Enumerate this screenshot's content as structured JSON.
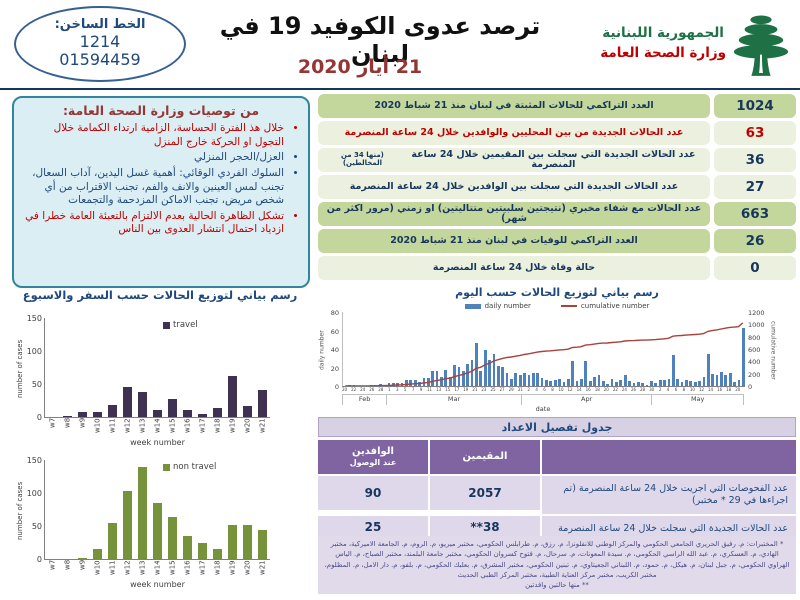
{
  "header": {
    "hotline_label": "الخط الساخن:",
    "hotline_number_short": "1214",
    "hotline_number_long": "01594459",
    "title": "ترصد عدوى الكوفيد 19 في لبنان",
    "date": "21 أيار 2020",
    "ministry_line1": "الجمهورية اللبنانية",
    "ministry_line2": "وزارة الصحة العامة"
  },
  "colors": {
    "green_dark_row": "#C3D69B",
    "green_light_row": "#EBF1DE",
    "navy": "#17365D",
    "red": "#C00000",
    "panel_teal": "#31859C",
    "purple_header": "#8064A2",
    "daily_bar_blue": "#4F81BD",
    "cumulative_line_red": "#A8423C",
    "travel_purple": "#3F3151",
    "nontravel_green": "#76933C"
  },
  "recommendations": {
    "title": "من توصيات وزارة الصحة العامة:",
    "items": [
      {
        "text": "خلال هذ الفترة الحساسة، الزامية ارتداء الكمامة خلال التجول او الحركة خارج المنزل",
        "color": "red"
      },
      {
        "text": "العزل/الحجر المنزلي",
        "color": "blue"
      },
      {
        "text": "السلوك الفردي الوقائي: أهمية غسل اليدين، آداب السعال، تجنب لمس العينين والانف والفم، تجنب الاقتراب من أي شخص مريض، تجنب الاماكن المزدحمة والتجمعات",
        "color": "blue"
      },
      {
        "text": "تشكل الظاهرة الحالية بعدم الالتزام بالتعبئة العامة خطرا في ازدياد احتمال انتشار العدوى بين الناس",
        "color": "red"
      }
    ]
  },
  "stats_rows": [
    {
      "value": "1024",
      "label": "العدد التراكمي للحالات المثبتة في لبنان منذ 21 شباط 2020",
      "shade": "dark",
      "color": "navy",
      "note": ""
    },
    {
      "value": "63",
      "label": "عدد الحالات الجديدة من بين المحليين والوافدين خلال 24 ساعة المنصرمة",
      "shade": "light",
      "color": "red",
      "note": ""
    },
    {
      "value": "36",
      "label": "عدد الحالات الجديدة التي سجلت بين المقيمين خلال 24 ساعة المنصرمة",
      "shade": "light",
      "color": "navy",
      "note": "(منها 34 من المخالطين)"
    },
    {
      "value": "27",
      "label": "عدد الحالات الجديدة التي سجلت بين الوافدين خلال 24 ساعة المنصرمة",
      "shade": "light",
      "color": "navy",
      "note": ""
    },
    {
      "value": "663",
      "label": "عدد الحالات مع شفاء مخبري (نتيجتين سلبيتين متتاليتين) او زمني (مرور اكثر من شهر)",
      "shade": "dark",
      "color": "navy",
      "note": ""
    },
    {
      "value": "26",
      "label": "العدد التراكمي للوفيات في لبنان منذ 21 شباط 2020",
      "shade": "dark",
      "color": "navy",
      "note": ""
    },
    {
      "value": "0",
      "label": "حالة وفاة خلال 24 ساعة المنصرمة",
      "shade": "light",
      "color": "navy",
      "note": ""
    }
  ],
  "weekly_section_title": "رسم بياني لتوزيع الحالات حسب السفر والاسبوع",
  "chart_data": [
    {
      "type": "bar",
      "title": "رسم بياني لتوزيع الحالات حسب السفر والاسبوع",
      "series_name": "travel",
      "color": "#3F3151",
      "categories": [
        "w7",
        "w8",
        "w9",
        "w10",
        "w11",
        "w12",
        "w13",
        "w14",
        "w15",
        "w16",
        "w17",
        "w18",
        "w19",
        "w20",
        "w21"
      ],
      "values": [
        0,
        1,
        8,
        7,
        18,
        45,
        38,
        11,
        28,
        11,
        5,
        14,
        62,
        17,
        41
      ],
      "xlabel": "week number",
      "ylabel": "number of cases",
      "ylim": [
        0,
        150
      ],
      "yticks": [
        0,
        50,
        100,
        150
      ],
      "legend_position": "top-right-inside"
    },
    {
      "type": "bar",
      "title": "رسم بياني لتوزيع الحالات حسب السفر والاسبوع",
      "series_name": "non travel",
      "color": "#76933C",
      "categories": [
        "w7",
        "w8",
        "w9",
        "w10",
        "w11",
        "w12",
        "w13",
        "w14",
        "w15",
        "w16",
        "w17",
        "w18",
        "w19",
        "w20",
        "w21"
      ],
      "values": [
        0,
        0,
        2,
        15,
        55,
        103,
        140,
        85,
        64,
        35,
        25,
        15,
        52,
        51,
        44
      ],
      "xlabel": "week number",
      "ylabel": "number of cases",
      "ylim": [
        0,
        150
      ],
      "yticks": [
        0,
        50,
        100,
        150
      ],
      "legend_position": "top-right-inside"
    },
    {
      "type": "bar+line",
      "title": "رسم بياني لتوزيع الحالات حسب اليوم",
      "legend": [
        "daily number",
        "cumulative number"
      ],
      "bar_color": "#4F81BD",
      "line_color": "#A8423C",
      "xlabel": "date",
      "ylabel_left": "daily number",
      "ylabel_right": "cumulative number",
      "ylim_left": [
        0,
        80
      ],
      "yticks_left": [
        0,
        20,
        40,
        60,
        80
      ],
      "ylim_right": [
        0,
        1200
      ],
      "yticks_right": [
        0,
        200,
        400,
        600,
        800,
        1000,
        1200
      ],
      "months": [
        {
          "label": "Feb",
          "start_day": 20,
          "end_day": 29
        },
        {
          "label": "Mar",
          "start_day": 1,
          "end_day": 31
        },
        {
          "label": "Apr",
          "start_day": 1,
          "end_day": 30
        },
        {
          "label": "May",
          "start_day": 1,
          "end_day": 21
        }
      ],
      "daily_values": [
        0,
        1,
        1,
        0,
        0,
        0,
        1,
        1,
        2,
        1,
        3,
        3,
        3,
        3,
        6,
        6,
        6,
        4,
        9,
        9,
        16,
        16,
        10,
        17,
        10,
        23,
        21,
        16,
        24,
        28,
        47,
        16,
        39,
        28,
        35,
        22,
        21,
        14,
        8,
        14,
        12,
        14,
        12,
        14,
        14,
        9,
        7,
        5,
        6,
        8,
        4,
        8,
        27,
        5,
        8,
        27,
        5,
        10,
        12,
        5,
        2,
        8,
        4,
        7,
        12,
        5,
        3,
        4,
        3,
        1,
        5,
        3,
        6,
        7,
        8,
        33,
        8,
        4,
        7,
        5,
        4,
        5,
        10,
        35,
        13,
        12,
        15,
        12,
        14,
        4,
        6,
        63
      ],
      "cumulative_final": 1024
    }
  ],
  "details_table": {
    "section_title": "جدول تفصيل الاعداد",
    "col_residents": "المقيمين",
    "col_arrivals": "الوافدين",
    "col_arrivals_sub": "عند الوصول",
    "rows": [
      {
        "label": "عدد الفحوصات التي اجريت خلال 24 ساعة المنصرمة (تم اجراءها في 29 * مختبر)",
        "residents": "2057",
        "arrivals": "90"
      },
      {
        "label": "عدد الحالات الجديدة التي سجلت خلال 24 ساعة المنصرمة",
        "residents": "38**",
        "arrivals": "25"
      }
    ]
  },
  "footnote": {
    "line1": "* المختبرات: م. رفيق الحريري الجامعي الحكومي والمركز الوطني للانفلونزا، م. رزق، م. طرابلس الحكومي، مختبر ميريو، م. الروم، م. الجامعة الاميركية، مختبر الهادي، م. العسكري، م. عبد الله الراسي الحكومي، م. سيدة المعونات، م. سرحال، م. فتوح كسروان الحكومي، مختبر جامعة البلمند، مختبر الصباح، م. الياس الهراوي الحكومي، م. جبل لبنان، م. هيكل، م. حمود، م. اللبناني الجعيتاوي، م. تبنين الحكومي، مختبر المشرق، م. بعلبك الحكومي، م. بلفو، م. دار الامل، م. المظلوم، مختبر الكريب، مختبر مركز العناية الطبية، مختبر المركز الطبي الحديث",
    "line2": "** منها حالتين وافدتين"
  }
}
